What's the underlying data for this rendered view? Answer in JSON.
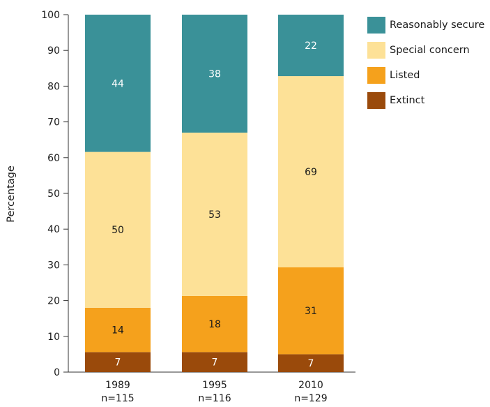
{
  "chart_data": {
    "type": "bar",
    "stacked": true,
    "ylabel": "Percentage",
    "xlabel": "",
    "ylim": [
      0,
      100
    ],
    "yticks": [
      0,
      10,
      20,
      30,
      40,
      50,
      60,
      70,
      80,
      90,
      100
    ],
    "categories": [
      {
        "year": "1989",
        "n": "n=115"
      },
      {
        "year": "1995",
        "n": "n=116"
      },
      {
        "year": "2010",
        "n": "n=129"
      }
    ],
    "series": [
      {
        "name": "Extinct",
        "color": "#9a4a0b",
        "values": [
          5.6,
          5.6,
          5.0
        ],
        "labels": [
          "7",
          "7",
          "7"
        ],
        "label_color": "#ffffff"
      },
      {
        "name": "Listed",
        "color": "#f5a11c",
        "values": [
          12.4,
          15.7,
          24.3
        ],
        "labels": [
          "14",
          "18",
          "31"
        ],
        "label_color": "#1a1a1a"
      },
      {
        "name": "Special concern",
        "color": "#fde197",
        "values": [
          43.6,
          45.7,
          53.5
        ],
        "labels": [
          "50",
          "53",
          "69"
        ],
        "label_color": "#1a1a1a"
      },
      {
        "name": "Reasonably secure",
        "color": "#3a9198",
        "values": [
          38.4,
          33.0,
          17.2
        ],
        "labels": [
          "44",
          "38",
          "22"
        ],
        "label_color": "#ffffff"
      }
    ],
    "legend_order": [
      "Reasonably secure",
      "Special concern",
      "Listed",
      "Extinct"
    ],
    "legend_position": "top-right",
    "grid": false
  }
}
